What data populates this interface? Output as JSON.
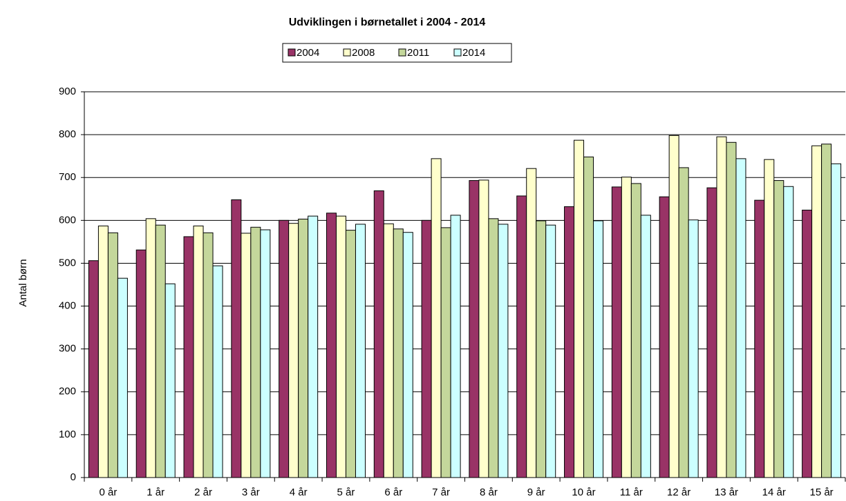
{
  "chart_data": {
    "type": "bar",
    "title": "Udviklingen i børnetallet i 2004 - 2014",
    "y_label": "Antal børn",
    "categories": [
      "0 år",
      "1 år",
      "2 år",
      "3 år",
      "4 år",
      "5 år",
      "6 år",
      "7 år",
      "8 år",
      "9 år",
      "10 år",
      "11 år",
      "12 år",
      "13 år",
      "14 år",
      "15 år"
    ],
    "series": [
      {
        "name": "2004",
        "color": "#993366",
        "values": [
          506,
          531,
          562,
          648,
          600,
          617,
          669,
          600,
          693,
          657,
          632,
          678,
          655,
          676,
          647,
          624
        ]
      },
      {
        "name": "2008",
        "color": "#ffffcc",
        "values": [
          587,
          604,
          587,
          570,
          593,
          610,
          592,
          744,
          694,
          721,
          787,
          701,
          798,
          795,
          742,
          774
        ]
      },
      {
        "name": "2011",
        "color": "#c4d79b",
        "values": [
          571,
          589,
          571,
          584,
          603,
          577,
          580,
          583,
          604,
          599,
          748,
          686,
          723,
          782,
          693,
          778
        ]
      },
      {
        "name": "2014",
        "color": "#ccffff",
        "values": [
          465,
          452,
          494,
          578,
          610,
          591,
          572,
          612,
          591,
          589,
          599,
          612,
          601,
          744,
          679,
          732
        ]
      }
    ],
    "ylim": [
      0,
      900
    ],
    "yticks": [
      0,
      100,
      200,
      300,
      400,
      500,
      600,
      700,
      800,
      900
    ],
    "grid": true,
    "legend": "top"
  }
}
